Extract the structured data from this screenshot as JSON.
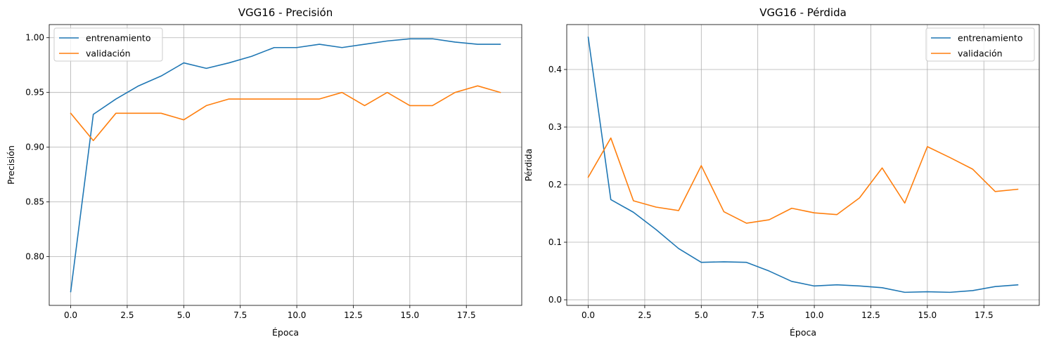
{
  "chart_data": [
    {
      "type": "line",
      "title": "VGG16 - Precisión",
      "xlabel": "Época",
      "ylabel": "Precisión",
      "xlim": [
        -0.95,
        19.95
      ],
      "ylim": [
        0.7555,
        1.012
      ],
      "xticks": [
        0,
        2.5,
        5,
        7.5,
        10,
        12.5,
        15,
        17.5
      ],
      "xtick_labels": [
        "0.0",
        "2.5",
        "5.0",
        "7.5",
        "10.0",
        "12.5",
        "15.0",
        "17.5"
      ],
      "yticks": [
        0.8,
        0.85,
        0.9,
        0.95,
        1.0
      ],
      "ytick_labels": [
        "0.80",
        "0.85",
        "0.90",
        "0.95",
        "1.00"
      ],
      "grid": true,
      "legend_position": "upper left",
      "x": [
        0,
        1,
        2,
        3,
        4,
        5,
        6,
        7,
        8,
        9,
        10,
        11,
        12,
        13,
        14,
        15,
        16,
        17,
        18,
        19
      ],
      "series": [
        {
          "name": "entrenamiento",
          "color": "#1f77b4",
          "values": [
            0.768,
            0.93,
            0.944,
            0.956,
            0.965,
            0.977,
            0.972,
            0.977,
            0.983,
            0.991,
            0.991,
            0.994,
            0.991,
            0.994,
            0.997,
            0.999,
            0.999,
            0.996,
            0.994,
            0.994
          ]
        },
        {
          "name": "validación",
          "color": "#ff7f0e",
          "values": [
            0.931,
            0.906,
            0.931,
            0.931,
            0.931,
            0.925,
            0.938,
            0.944,
            0.944,
            0.944,
            0.944,
            0.944,
            0.95,
            0.938,
            0.95,
            0.938,
            0.938,
            0.95,
            0.956,
            0.95
          ]
        }
      ]
    },
    {
      "type": "line",
      "title": "VGG16 - Pérdida",
      "xlabel": "Época",
      "ylabel": "Pérdida",
      "xlim": [
        -0.95,
        19.95
      ],
      "ylim": [
        -0.0097,
        0.478
      ],
      "xticks": [
        0,
        2.5,
        5,
        7.5,
        10,
        12.5,
        15,
        17.5
      ],
      "xtick_labels": [
        "0.0",
        "2.5",
        "5.0",
        "7.5",
        "10.0",
        "12.5",
        "15.0",
        "17.5"
      ],
      "yticks": [
        0.0,
        0.1,
        0.2,
        0.3,
        0.4
      ],
      "ytick_labels": [
        "0.0",
        "0.1",
        "0.2",
        "0.3",
        "0.4"
      ],
      "grid": true,
      "legend_position": "upper right",
      "x": [
        0,
        1,
        2,
        3,
        4,
        5,
        6,
        7,
        8,
        9,
        10,
        11,
        12,
        13,
        14,
        15,
        16,
        17,
        18,
        19
      ],
      "series": [
        {
          "name": "entrenamiento",
          "color": "#1f77b4",
          "values": [
            0.456,
            0.174,
            0.152,
            0.122,
            0.089,
            0.065,
            0.066,
            0.065,
            0.05,
            0.032,
            0.024,
            0.026,
            0.024,
            0.021,
            0.013,
            0.014,
            0.013,
            0.016,
            0.023,
            0.026
          ]
        },
        {
          "name": "validación",
          "color": "#ff7f0e",
          "values": [
            0.213,
            0.281,
            0.172,
            0.161,
            0.155,
            0.233,
            0.153,
            0.133,
            0.139,
            0.159,
            0.151,
            0.148,
            0.177,
            0.229,
            0.168,
            0.266,
            0.247,
            0.227,
            0.188,
            0.192
          ]
        }
      ]
    }
  ]
}
